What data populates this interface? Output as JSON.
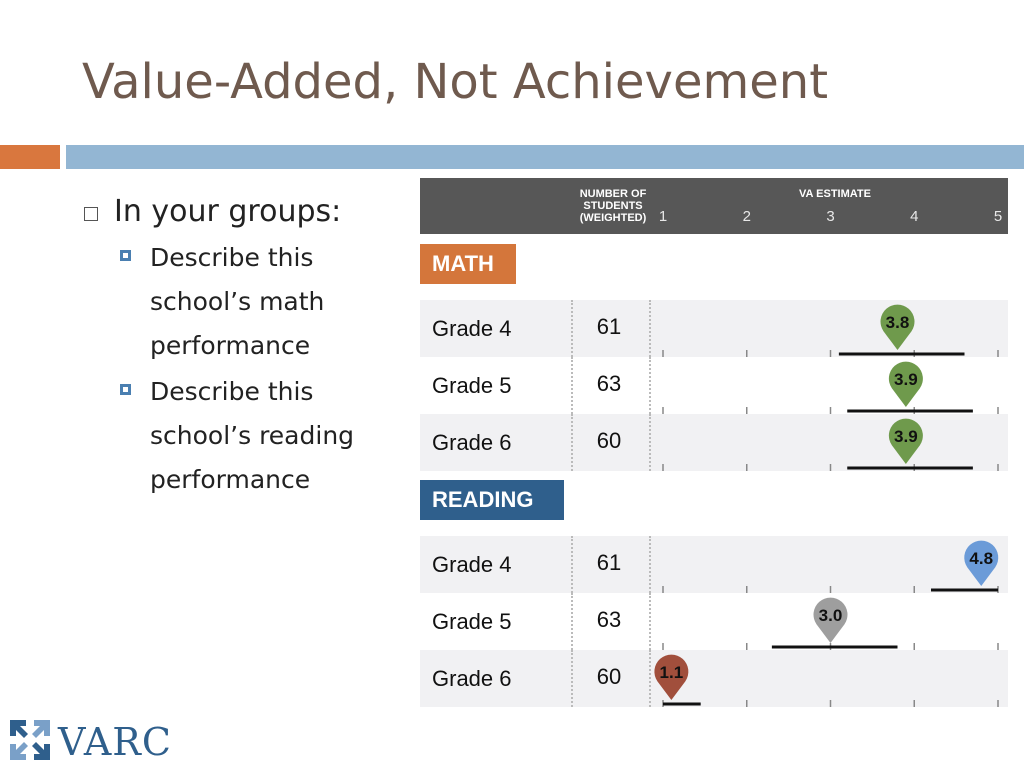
{
  "title": "Value-Added, Not Achievement",
  "bullets": {
    "main": "In your groups:",
    "sub": [
      "Describe this school’s math performance",
      "Describe this school’s reading performance"
    ]
  },
  "logo_text": "VARC",
  "colors": {
    "math_header": "#d4763b",
    "reading_header": "#2f5f8c",
    "green": "#6f9a4c",
    "gray": "#9e9e9e",
    "blue": "#6b9bd8",
    "red": "#a14f3c"
  },
  "chart_data": {
    "type": "table",
    "header": {
      "students": "NUMBER OF STUDENTS (WEIGHTED)",
      "estimate": "VA ESTIMATE"
    },
    "ticks": [
      "1",
      "2",
      "3",
      "4",
      "5"
    ],
    "xlim": [
      1,
      5
    ],
    "sections": [
      {
        "name": "MATH",
        "rows": [
          {
            "grade": "Grade 4",
            "students": "61",
            "estimate": 3.8,
            "label": "3.8",
            "ci": [
              3.1,
              4.6
            ],
            "color": "green"
          },
          {
            "grade": "Grade 5",
            "students": "63",
            "estimate": 3.9,
            "label": "3.9",
            "ci": [
              3.2,
              4.7
            ],
            "color": "green"
          },
          {
            "grade": "Grade 6",
            "students": "60",
            "estimate": 3.9,
            "label": "3.9",
            "ci": [
              3.2,
              4.7
            ],
            "color": "green"
          }
        ]
      },
      {
        "name": "READING",
        "rows": [
          {
            "grade": "Grade 4",
            "students": "61",
            "estimate": 4.8,
            "label": "4.8",
            "ci": [
              4.2,
              5.0
            ],
            "color": "blue"
          },
          {
            "grade": "Grade 5",
            "students": "63",
            "estimate": 3.0,
            "label": "3.0",
            "ci": [
              2.3,
              3.8
            ],
            "color": "gray"
          },
          {
            "grade": "Grade 6",
            "students": "60",
            "estimate": 1.1,
            "label": "1.1",
            "ci": [
              1.0,
              1.45
            ],
            "color": "red"
          }
        ]
      }
    ]
  }
}
